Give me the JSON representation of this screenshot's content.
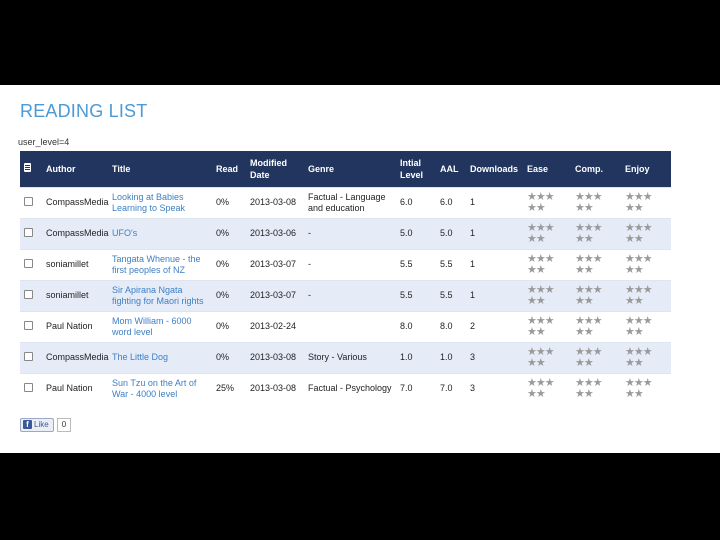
{
  "title": "READING LIST",
  "user_level": "user_level=4",
  "columns": {
    "author": "Author",
    "title": "Title",
    "read": "Read",
    "modified": "Modified Date",
    "genre": "Genre",
    "initial_level": "Intial Level",
    "aal": "AAL",
    "downloads": "Downloads",
    "ease": "Ease",
    "comp": "Comp.",
    "enjoy": "Enjoy"
  },
  "rows": [
    {
      "author": "CompassMedia",
      "title": "Looking at Babies Learning to Speak",
      "read": "0%",
      "modified": "2013-03-08",
      "genre": "Factual - Language and education",
      "initial_level": "6.0",
      "aal": "6.0",
      "downloads": "1"
    },
    {
      "author": "CompassMedia",
      "title": "UFO's",
      "read": "0%",
      "modified": "2013-03-06",
      "genre": "-",
      "initial_level": "5.0",
      "aal": "5.0",
      "downloads": "1"
    },
    {
      "author": "soniamillet",
      "title": "Tangata Whenue - the first peoples of NZ",
      "read": "0%",
      "modified": "2013-03-07",
      "genre": "-",
      "initial_level": "5.5",
      "aal": "5.5",
      "downloads": "1"
    },
    {
      "author": "soniamillet",
      "title": "Sir Apirana Ngata fighting for Maori rights",
      "read": "0%",
      "modified": "2013-03-07",
      "genre": "-",
      "initial_level": "5.5",
      "aal": "5.5",
      "downloads": "1"
    },
    {
      "author": "Paul Nation",
      "title": "Mom William - 6000 word level",
      "read": "0%",
      "modified": "2013-02-24",
      "genre": "",
      "initial_level": "8.0",
      "aal": "8.0",
      "downloads": "2"
    },
    {
      "author": "CompassMedia",
      "title": "The Little Dog",
      "read": "0%",
      "modified": "2013-03-08",
      "genre": "Story - Various",
      "initial_level": "1.0",
      "aal": "1.0",
      "downloads": "3"
    },
    {
      "author": "Paul Nation",
      "title": "Sun Tzu on the Art of War - 4000 level",
      "read": "25%",
      "modified": "2013-03-08",
      "genre": "Factual - Psychology",
      "initial_level": "7.0",
      "aal": "7.0",
      "downloads": "3"
    }
  ],
  "rating_stars": {
    "row1": "★★★",
    "row2": "★★"
  },
  "icons": {
    "checkbox": "checkbox-icon",
    "star": "star-icon",
    "facebook": "facebook-icon"
  },
  "colors": {
    "header_bg": "#22355e",
    "title_color": "#4b9ad6",
    "link": "#3d7fc4",
    "alt_row": "#e5ecf8"
  },
  "like": {
    "label": "Like",
    "fb": "f",
    "count": "0"
  }
}
